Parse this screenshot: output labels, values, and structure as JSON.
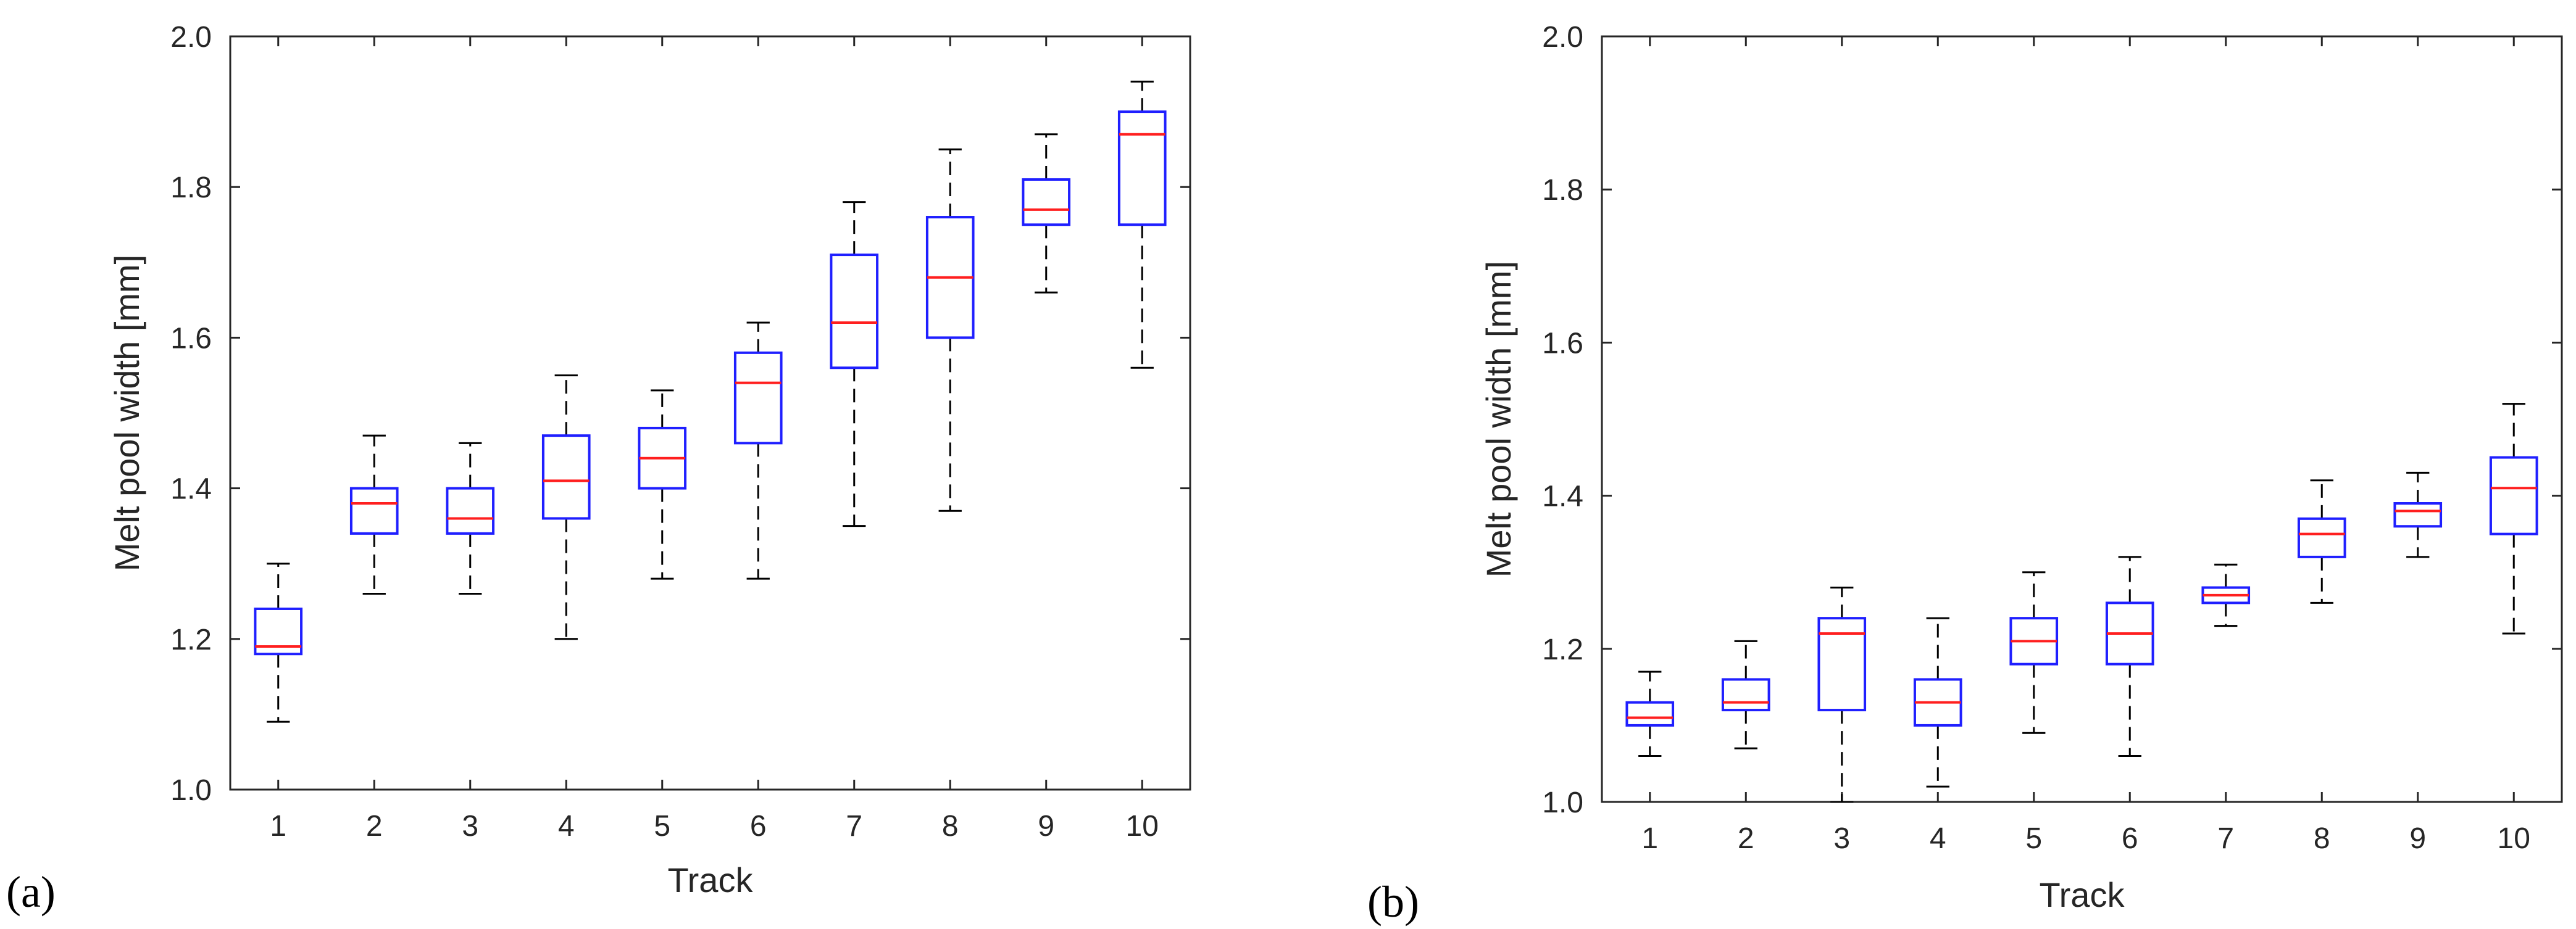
{
  "chart_data": [
    {
      "type": "box",
      "panel": "(a)",
      "xlabel": "Track",
      "ylabel": "Melt pool width [mm]",
      "ylim": [
        1.0,
        2.0
      ],
      "yticks": [
        "1.0",
        "1.2",
        "1.4",
        "1.6",
        "1.8",
        "2.0"
      ],
      "categories": [
        "1",
        "2",
        "3",
        "4",
        "5",
        "6",
        "7",
        "8",
        "9",
        "10"
      ],
      "boxes": [
        {
          "min": 1.09,
          "q1": 1.18,
          "median": 1.19,
          "q3": 1.24,
          "max": 1.3
        },
        {
          "min": 1.26,
          "q1": 1.34,
          "median": 1.38,
          "q3": 1.4,
          "max": 1.47
        },
        {
          "min": 1.26,
          "q1": 1.34,
          "median": 1.36,
          "q3": 1.4,
          "max": 1.46
        },
        {
          "min": 1.2,
          "q1": 1.36,
          "median": 1.41,
          "q3": 1.47,
          "max": 1.55
        },
        {
          "min": 1.28,
          "q1": 1.4,
          "median": 1.44,
          "q3": 1.48,
          "max": 1.53
        },
        {
          "min": 1.28,
          "q1": 1.46,
          "median": 1.54,
          "q3": 1.58,
          "max": 1.62
        },
        {
          "min": 1.35,
          "q1": 1.56,
          "median": 1.62,
          "q3": 1.71,
          "max": 1.78
        },
        {
          "min": 1.37,
          "q1": 1.6,
          "median": 1.68,
          "q3": 1.76,
          "max": 1.85
        },
        {
          "min": 1.66,
          "q1": 1.75,
          "median": 1.77,
          "q3": 1.81,
          "max": 1.87
        },
        {
          "min": 1.56,
          "q1": 1.75,
          "median": 1.87,
          "q3": 1.9,
          "max": 1.94
        }
      ]
    },
    {
      "type": "box",
      "panel": "(b)",
      "xlabel": "Track",
      "ylabel": "Melt pool width [mm]",
      "ylim": [
        1.0,
        2.0
      ],
      "yticks": [
        "1.0",
        "1.2",
        "1.4",
        "1.6",
        "1.8",
        "2.0"
      ],
      "categories": [
        "1",
        "2",
        "3",
        "4",
        "5",
        "6",
        "7",
        "8",
        "9",
        "10"
      ],
      "boxes": [
        {
          "min": 1.06,
          "q1": 1.1,
          "median": 1.11,
          "q3": 1.13,
          "max": 1.17
        },
        {
          "min": 1.07,
          "q1": 1.12,
          "median": 1.13,
          "q3": 1.16,
          "max": 1.21
        },
        {
          "min": 1.0,
          "q1": 1.12,
          "median": 1.22,
          "q3": 1.24,
          "max": 1.28
        },
        {
          "min": 1.02,
          "q1": 1.1,
          "median": 1.13,
          "q3": 1.16,
          "max": 1.24
        },
        {
          "min": 1.09,
          "q1": 1.18,
          "median": 1.21,
          "q3": 1.24,
          "max": 1.3
        },
        {
          "min": 1.06,
          "q1": 1.18,
          "median": 1.22,
          "q3": 1.26,
          "max": 1.32
        },
        {
          "min": 1.23,
          "q1": 1.26,
          "median": 1.27,
          "q3": 1.28,
          "max": 1.31
        },
        {
          "min": 1.26,
          "q1": 1.32,
          "median": 1.35,
          "q3": 1.37,
          "max": 1.42
        },
        {
          "min": 1.32,
          "q1": 1.36,
          "median": 1.38,
          "q3": 1.39,
          "max": 1.43
        },
        {
          "min": 1.22,
          "q1": 1.35,
          "median": 1.41,
          "q3": 1.45,
          "max": 1.52
        }
      ]
    }
  ],
  "colors": {
    "box": "#1f1fff",
    "median": "#ff1f1f",
    "whisker": "#000000",
    "axis": "#262626"
  }
}
